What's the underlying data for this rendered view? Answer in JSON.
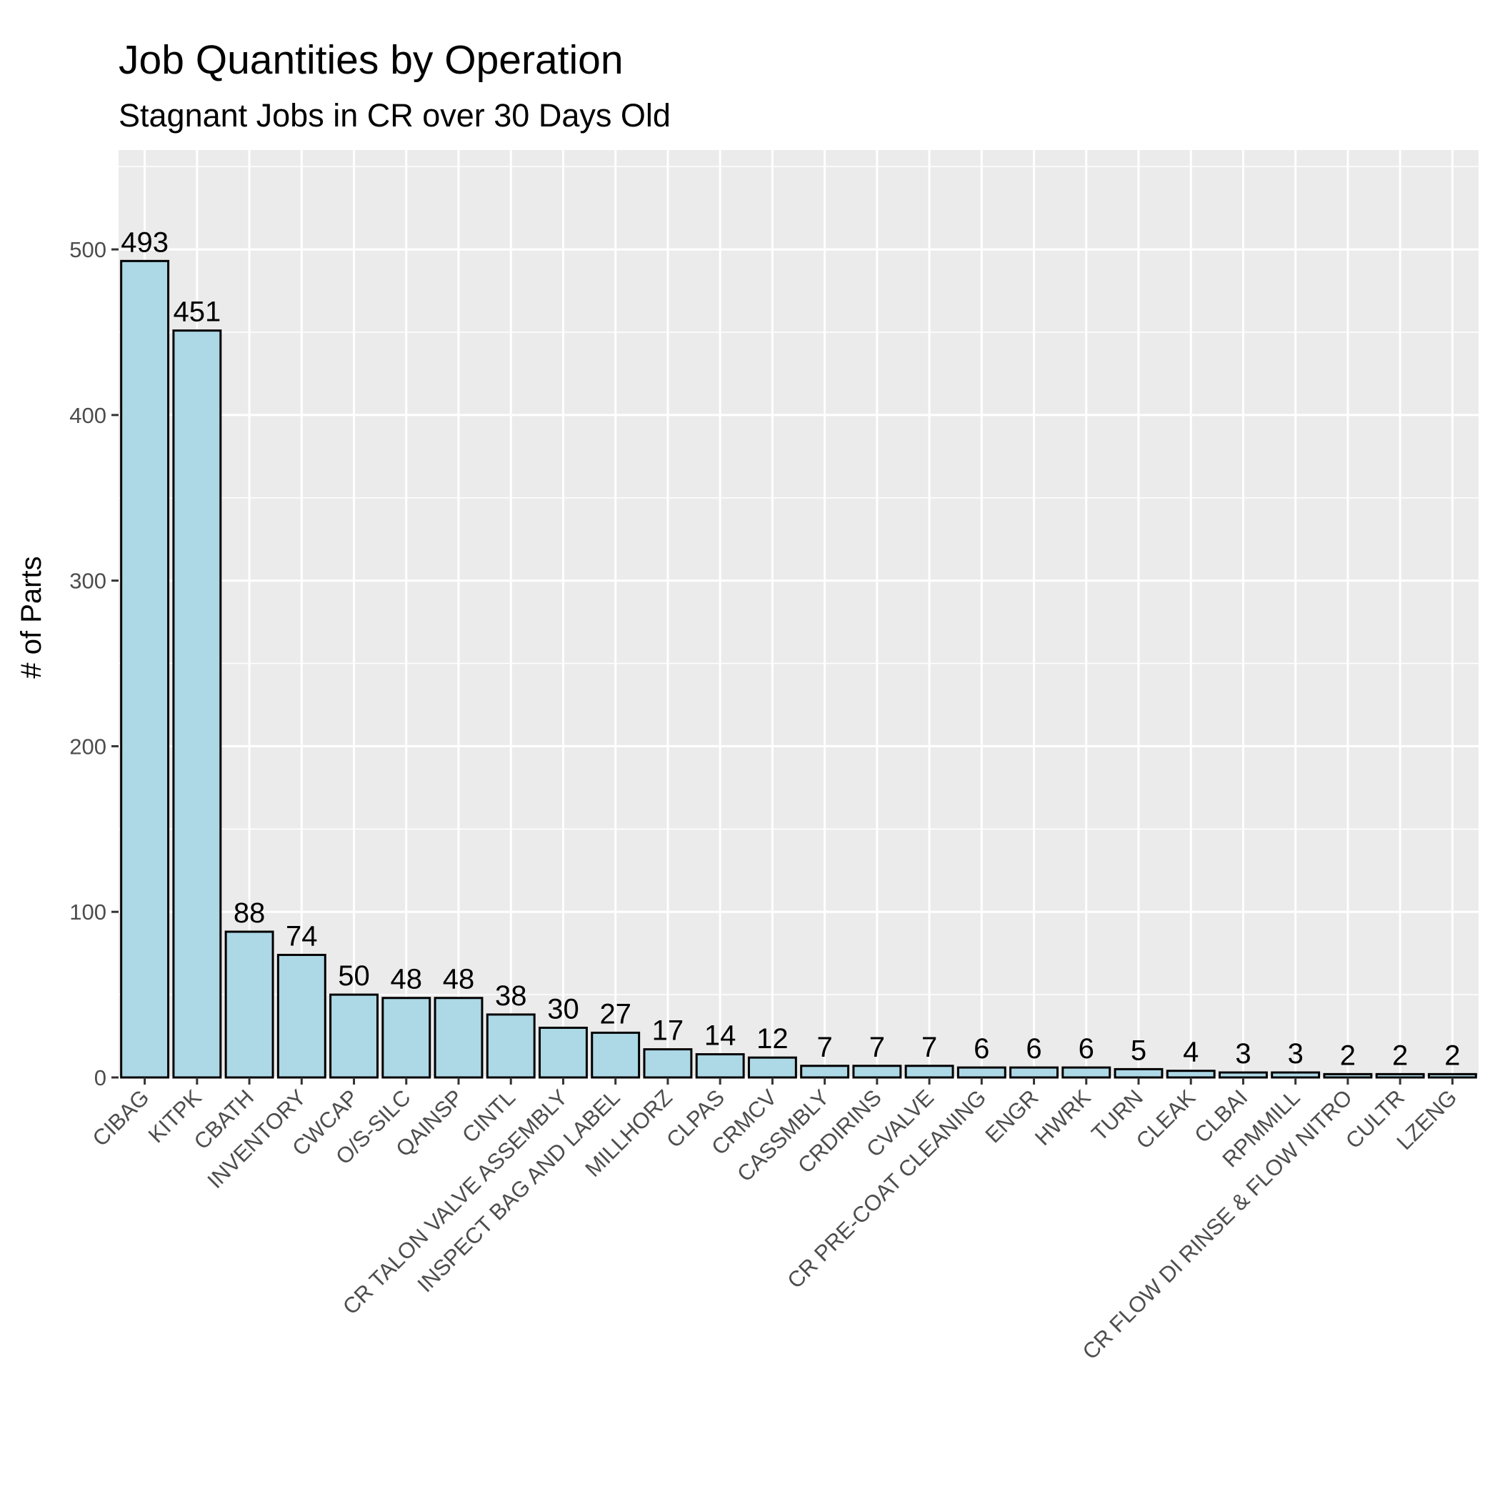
{
  "chart_data": {
    "type": "bar",
    "title": "Job Quantities by Operation",
    "subtitle": "Stagnant Jobs in CR over 30 Days Old",
    "xlabel": "",
    "ylabel": "# of Parts",
    "ylim": [
      0,
      560
    ],
    "yticks": [
      0,
      100,
      200,
      300,
      400,
      500
    ],
    "grid": true,
    "legend": "none",
    "bar_fill": "#ADD8E6",
    "bar_stroke": "#000000",
    "panel_background": "#EBEBEB",
    "categories": [
      "CIBAG",
      "KITPK",
      "CBATH",
      "INVENTORY",
      "CWCAP",
      "O/S-SILC",
      "QAINSP",
      "CINTL",
      "CR TALON VALVE ASSEMBLY",
      "INSPECT BAG AND LABEL",
      "MILLHORZ",
      "CLPAS",
      "CRMCV",
      "CASSMBLY",
      "CRDIRINS",
      "CVALVE",
      "CR PRE-COAT CLEANING",
      "ENGR",
      "HWRK",
      "TURN",
      "CLEAK",
      "CLBAI",
      "RPMMILL",
      "CR FLOW DI RINSE & FLOW NITRO",
      "CULTR",
      "LZENG"
    ],
    "values": [
      493,
      451,
      88,
      74,
      50,
      48,
      48,
      38,
      30,
      27,
      17,
      14,
      12,
      7,
      7,
      7,
      6,
      6,
      6,
      5,
      4,
      3,
      3,
      2,
      2,
      2
    ]
  }
}
